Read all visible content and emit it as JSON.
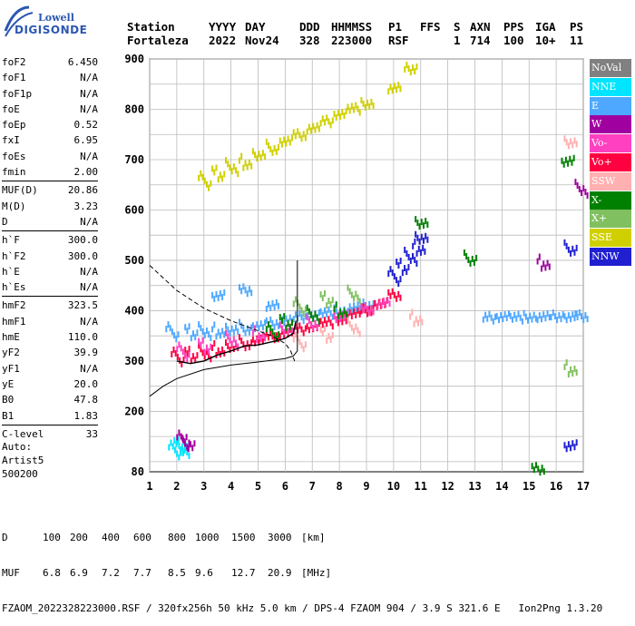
{
  "logo": {
    "line1": "Lowell",
    "line2": "DIGISONDE"
  },
  "header": {
    "labels": [
      "Station",
      "YYYY",
      "DAY",
      "DDD",
      "HHMMSS",
      "P1",
      "FFS",
      "S",
      "AXN",
      "PPS",
      "IGA",
      "PS"
    ],
    "values": [
      "Fortaleza",
      "2022",
      "Nov24",
      "328",
      "223000",
      "RSF",
      "1",
      "714",
      "100",
      "10+",
      "11"
    ]
  },
  "params": [
    {
      "group": [
        {
          "name": "foF2",
          "value": "6.450"
        },
        {
          "name": "foF1",
          "value": "N/A"
        },
        {
          "name": "foF1p",
          "value": "N/A"
        },
        {
          "name": "foE",
          "value": "N/A"
        },
        {
          "name": "foEp",
          "value": "0.52"
        },
        {
          "name": "fxI",
          "value": "6.95"
        },
        {
          "name": "foEs",
          "value": "N/A"
        },
        {
          "name": "fmin",
          "value": "2.00"
        }
      ]
    },
    {
      "group": [
        {
          "name": "MUF(D)",
          "value": "20.86"
        },
        {
          "name": "M(D)",
          "value": "3.23"
        },
        {
          "name": "D",
          "value": "N/A"
        }
      ]
    },
    {
      "group": [
        {
          "name": "h`F",
          "value": "300.0"
        },
        {
          "name": "h`F2",
          "value": "300.0"
        },
        {
          "name": "h`E",
          "value": "N/A"
        },
        {
          "name": "h`Es",
          "value": "N/A"
        }
      ]
    },
    {
      "group": [
        {
          "name": "hmF2",
          "value": "323.5"
        },
        {
          "name": "hmF1",
          "value": "N/A"
        },
        {
          "name": "hmE",
          "value": "110.0"
        },
        {
          "name": "yF2",
          "value": "39.9"
        },
        {
          "name": "yF1",
          "value": "N/A"
        },
        {
          "name": "yE",
          "value": "20.0"
        },
        {
          "name": "B0",
          "value": "47.8"
        },
        {
          "name": "B1",
          "value": "1.83"
        }
      ]
    },
    {
      "group": [
        {
          "name": "C-level",
          "value": "33"
        }
      ]
    }
  ],
  "autoinfo": {
    "line1": "Auto:",
    "line2": "Artist5",
    "line3": "500200"
  },
  "legend": [
    {
      "label": "NoVal",
      "color": "#808080"
    },
    {
      "label": "NNE",
      "color": "#00e5ff"
    },
    {
      "label": "E",
      "color": "#4fa8ff"
    },
    {
      "label": "W",
      "color": "#a000a0"
    },
    {
      "label": "Vo-",
      "color": "#ff40c0"
    },
    {
      "label": "Vo+",
      "color": "#ff0040"
    },
    {
      "label": "SSW",
      "color": "#ffb0b0"
    },
    {
      "label": "X-",
      "color": "#008000"
    },
    {
      "label": "X+",
      "color": "#80c060"
    },
    {
      "label": "SSE",
      "color": "#d0d000"
    },
    {
      "label": "NNW",
      "color": "#2020d0"
    }
  ],
  "footer": {
    "d_label": "D",
    "d_values": [
      "100",
      "200",
      "400",
      "600",
      "800",
      "1000",
      "1500",
      "3000"
    ],
    "d_unit": "[km]",
    "muf_label": "MUF",
    "muf_values": [
      "6.8",
      "6.9",
      "7.2",
      "7.7",
      "8.5",
      "9.6",
      "12.7",
      "20.9"
    ],
    "muf_unit": "[MHz]",
    "info": "FZAOM_2022328223000.RSF / 320fx256h 50 kHz 5.0 km / DPS-4 FZAOM 904 / 3.9 S 321.6 E   Ion2Png 1.3.20"
  },
  "chart_data": {
    "type": "scatter",
    "xlim": [
      1,
      17
    ],
    "ylim": [
      80,
      900
    ],
    "xticks": [
      1,
      2,
      3,
      4,
      5,
      6,
      7,
      8,
      9,
      10,
      11,
      12,
      13,
      14,
      15,
      16,
      17
    ],
    "yticks": [
      80,
      200,
      300,
      400,
      500,
      600,
      700,
      800,
      900
    ],
    "grid": true,
    "ionogram_traces": [
      {
        "name": "E",
        "color": "#4fa8ff",
        "points": [
          [
            1.8,
            350
          ],
          [
            2.5,
            350
          ],
          [
            3.0,
            352
          ],
          [
            3.5,
            355
          ],
          [
            4.0,
            358
          ],
          [
            4.5,
            362
          ],
          [
            5.0,
            368
          ],
          [
            5.5,
            374
          ],
          [
            6.0,
            380
          ],
          [
            6.5,
            386
          ],
          [
            7.0,
            390
          ],
          [
            7.5,
            394
          ],
          [
            8.0,
            398
          ],
          [
            8.5,
            404
          ],
          [
            9.0,
            410
          ],
          [
            3.5,
            428
          ],
          [
            4.5,
            440
          ],
          [
            5.5,
            410
          ],
          [
            13.5,
            385
          ],
          [
            14.0,
            388
          ],
          [
            14.5,
            385
          ],
          [
            15.0,
            387
          ],
          [
            15.5,
            386
          ],
          [
            16.0,
            388
          ],
          [
            16.5,
            386
          ],
          [
            16.9,
            388
          ]
        ]
      },
      {
        "name": "Vo+",
        "color": "#ff0040",
        "points": [
          [
            2.0,
            300
          ],
          [
            2.5,
            305
          ],
          [
            3.0,
            310
          ],
          [
            3.5,
            318
          ],
          [
            4.0,
            325
          ],
          [
            4.5,
            332
          ],
          [
            5.0,
            340
          ],
          [
            5.5,
            348
          ],
          [
            6.0,
            356
          ],
          [
            6.5,
            362
          ],
          [
            7.0,
            368
          ],
          [
            7.5,
            375
          ],
          [
            8.0,
            382
          ],
          [
            8.5,
            392
          ],
          [
            9.0,
            400
          ],
          [
            9.5,
            412
          ],
          [
            10.0,
            430
          ]
        ]
      },
      {
        "name": "Vo-",
        "color": "#ff40c0",
        "points": [
          [
            2.2,
            310
          ],
          [
            3.0,
            322
          ],
          [
            4.0,
            335
          ],
          [
            5.0,
            348
          ],
          [
            6.0,
            360
          ],
          [
            7.0,
            372
          ],
          [
            8.0,
            386
          ],
          [
            9.0,
            402
          ],
          [
            9.6,
            415
          ]
        ]
      },
      {
        "name": "NNW",
        "color": "#2020d0",
        "points": [
          [
            10.0,
            460
          ],
          [
            10.3,
            480
          ],
          [
            10.6,
            500
          ],
          [
            10.9,
            520
          ],
          [
            11.0,
            540
          ],
          [
            16.5,
            520
          ],
          [
            16.5,
            130
          ]
        ]
      },
      {
        "name": "SSE",
        "color": "#d0d000",
        "points": [
          [
            3.0,
            650
          ],
          [
            3.5,
            665
          ],
          [
            4.0,
            678
          ],
          [
            4.5,
            690
          ],
          [
            5.0,
            705
          ],
          [
            5.5,
            720
          ],
          [
            6.0,
            735
          ],
          [
            6.5,
            748
          ],
          [
            7.0,
            762
          ],
          [
            7.5,
            775
          ],
          [
            8.0,
            790
          ],
          [
            8.5,
            800
          ],
          [
            9.0,
            810
          ],
          [
            10.0,
            840
          ],
          [
            10.6,
            880
          ]
        ]
      },
      {
        "name": "X-",
        "color": "#008000",
        "points": [
          [
            5.5,
            350
          ],
          [
            6.0,
            370
          ],
          [
            7.0,
            385
          ],
          [
            8.0,
            395
          ],
          [
            11.0,
            570
          ],
          [
            12.8,
            500
          ],
          [
            16.4,
            695
          ],
          [
            15.3,
            85
          ]
        ]
      },
      {
        "name": "X+",
        "color": "#80c060",
        "points": [
          [
            6.5,
            400
          ],
          [
            7.5,
            415
          ],
          [
            8.5,
            425
          ],
          [
            16.5,
            280
          ]
        ]
      },
      {
        "name": "SSW",
        "color": "#ffb0b0",
        "points": [
          [
            6.5,
            330
          ],
          [
            7.5,
            345
          ],
          [
            8.5,
            360
          ],
          [
            10.8,
            380
          ],
          [
            16.5,
            730
          ]
        ]
      },
      {
        "name": "NNE",
        "color": "#00e5ff",
        "points": [
          [
            1.9,
            115
          ],
          [
            2.1,
            125
          ],
          [
            2.2,
            118
          ]
        ]
      },
      {
        "name": "W",
        "color": "#a000a0",
        "points": [
          [
            2.2,
            135
          ],
          [
            2.4,
            130
          ],
          [
            16.9,
            635
          ],
          [
            15.5,
            490
          ]
        ]
      }
    ],
    "profile_line": [
      [
        1,
        490
      ],
      [
        2,
        440
      ],
      [
        3,
        405
      ],
      [
        4,
        380
      ],
      [
        5,
        360
      ],
      [
        5.5,
        350
      ],
      [
        6,
        335
      ],
      [
        6.2,
        320
      ],
      [
        6.35,
        300
      ]
    ],
    "profile_line2": [
      [
        1,
        230
      ],
      [
        1.5,
        250
      ],
      [
        2,
        265
      ],
      [
        3,
        283
      ],
      [
        4,
        292
      ],
      [
        5,
        298
      ],
      [
        6,
        305
      ],
      [
        6.3,
        310
      ],
      [
        6.45,
        320
      ],
      [
        6.45,
        500
      ]
    ],
    "model_line": [
      [
        2.0,
        300
      ],
      [
        2.5,
        295
      ],
      [
        3.0,
        300
      ],
      [
        3.5,
        312
      ],
      [
        4.0,
        320
      ],
      [
        4.5,
        330
      ],
      [
        5.0,
        332
      ],
      [
        5.5,
        338
      ],
      [
        6.0,
        345
      ],
      [
        6.3,
        355
      ],
      [
        6.4,
        380
      ]
    ]
  }
}
